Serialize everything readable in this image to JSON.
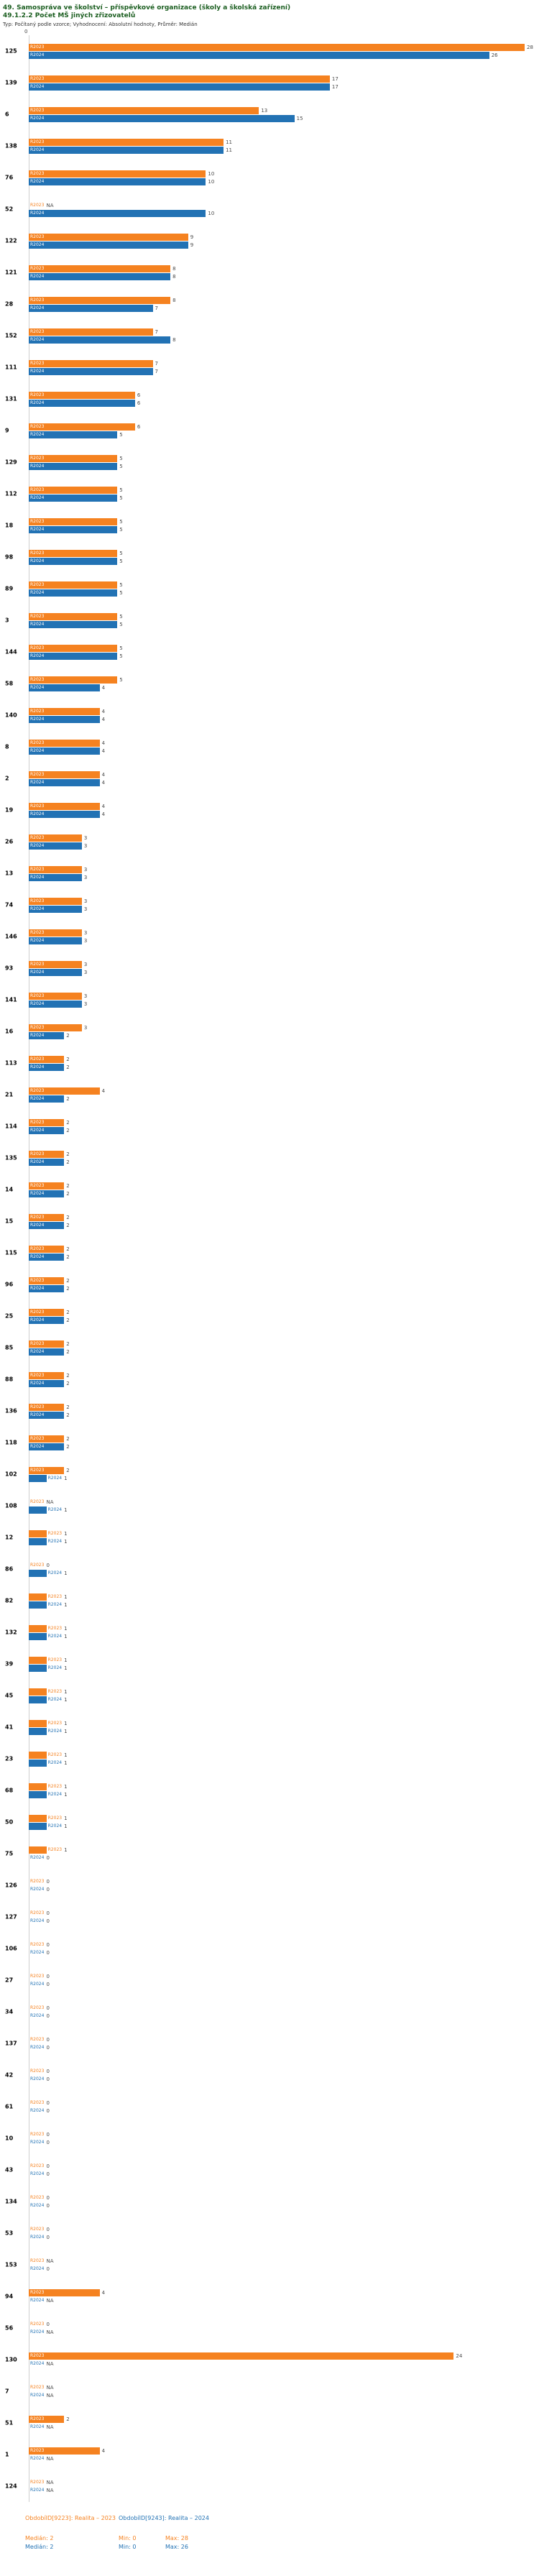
{
  "header": {
    "title_line1": "49. Samospráva ve školství – příspěvkové organizace (školy a školská zařízení)",
    "title_line2": "49.1.2.2 Počet MŠ jiných zřizovatelů",
    "subtitle": "Typ: Počítaný podle vzorce; Vyhodnocení: Absolutní hodnoty, Průměr: Medián"
  },
  "chart_data": {
    "type": "bar",
    "orientation": "horizontal",
    "xlim": [
      0,
      28
    ],
    "axis_zero_label": "0",
    "na_label": "NA",
    "grid": false,
    "legend_position": "bottom",
    "series": [
      {
        "name": "R2023",
        "period_label": "ObdobíID[9223]: Realita – 2023",
        "color": "#f58220",
        "median": 2,
        "min": 0,
        "max": 28,
        "median_text": "Medián: 2",
        "min_text": "Min: 0",
        "max_text": "Max: 28"
      },
      {
        "name": "R2024",
        "period_label": "ObdobíID[9243]: Realita – 2024",
        "color": "#2272b4",
        "median": 2,
        "min": 0,
        "max": 26,
        "median_text": "Medián: 2",
        "min_text": "Min: 0",
        "max_text": "Max: 26"
      }
    ],
    "rows": [
      {
        "id": "125",
        "r2023": 28,
        "r2024": 26
      },
      {
        "id": "139",
        "r2023": 17,
        "r2024": 17
      },
      {
        "id": "6",
        "r2023": 13,
        "r2024": 15
      },
      {
        "id": "138",
        "r2023": 11,
        "r2024": 11
      },
      {
        "id": "76",
        "r2023": 10,
        "r2024": 10
      },
      {
        "id": "52",
        "r2023": null,
        "r2024": 10
      },
      {
        "id": "122",
        "r2023": 9,
        "r2024": 9
      },
      {
        "id": "121",
        "r2023": 8,
        "r2024": 8
      },
      {
        "id": "28",
        "r2023": 8,
        "r2024": 7
      },
      {
        "id": "152",
        "r2023": 7,
        "r2024": 8
      },
      {
        "id": "111",
        "r2023": 7,
        "r2024": 7
      },
      {
        "id": "131",
        "r2023": 6,
        "r2024": 6
      },
      {
        "id": "9",
        "r2023": 6,
        "r2024": 5
      },
      {
        "id": "129",
        "r2023": 5,
        "r2024": 5
      },
      {
        "id": "112",
        "r2023": 5,
        "r2024": 5
      },
      {
        "id": "18",
        "r2023": 5,
        "r2024": 5
      },
      {
        "id": "98",
        "r2023": 5,
        "r2024": 5
      },
      {
        "id": "89",
        "r2023": 5,
        "r2024": 5
      },
      {
        "id": "3",
        "r2023": 5,
        "r2024": 5
      },
      {
        "id": "144",
        "r2023": 5,
        "r2024": 5
      },
      {
        "id": "58",
        "r2023": 5,
        "r2024": 4
      },
      {
        "id": "140",
        "r2023": 4,
        "r2024": 4
      },
      {
        "id": "8",
        "r2023": 4,
        "r2024": 4
      },
      {
        "id": "2",
        "r2023": 4,
        "r2024": 4
      },
      {
        "id": "19",
        "r2023": 4,
        "r2024": 4
      },
      {
        "id": "26",
        "r2023": 3,
        "r2024": 3
      },
      {
        "id": "13",
        "r2023": 3,
        "r2024": 3
      },
      {
        "id": "74",
        "r2023": 3,
        "r2024": 3
      },
      {
        "id": "146",
        "r2023": 3,
        "r2024": 3
      },
      {
        "id": "93",
        "r2023": 3,
        "r2024": 3
      },
      {
        "id": "141",
        "r2023": 3,
        "r2024": 3
      },
      {
        "id": "16",
        "r2023": 3,
        "r2024": 2
      },
      {
        "id": "113",
        "r2023": 2,
        "r2024": 2
      },
      {
        "id": "21",
        "r2023": 4,
        "r2024": 2
      },
      {
        "id": "114",
        "r2023": 2,
        "r2024": 2
      },
      {
        "id": "135",
        "r2023": 2,
        "r2024": 2
      },
      {
        "id": "14",
        "r2023": 2,
        "r2024": 2
      },
      {
        "id": "15",
        "r2023": 2,
        "r2024": 2
      },
      {
        "id": "115",
        "r2023": 2,
        "r2024": 2
      },
      {
        "id": "96",
        "r2023": 2,
        "r2024": 2
      },
      {
        "id": "25",
        "r2023": 2,
        "r2024": 2
      },
      {
        "id": "85",
        "r2023": 2,
        "r2024": 2
      },
      {
        "id": "88",
        "r2023": 2,
        "r2024": 2
      },
      {
        "id": "136",
        "r2023": 2,
        "r2024": 2
      },
      {
        "id": "118",
        "r2023": 2,
        "r2024": 2
      },
      {
        "id": "102",
        "r2023": 2,
        "r2024": 1
      },
      {
        "id": "108",
        "r2023": null,
        "r2024": 1
      },
      {
        "id": "12",
        "r2023": 1,
        "r2024": 1
      },
      {
        "id": "86",
        "r2023": 0,
        "r2024": 1
      },
      {
        "id": "82",
        "r2023": 1,
        "r2024": 1
      },
      {
        "id": "132",
        "r2023": 1,
        "r2024": 1
      },
      {
        "id": "39",
        "r2023": 1,
        "r2024": 1
      },
      {
        "id": "45",
        "r2023": 1,
        "r2024": 1
      },
      {
        "id": "41",
        "r2023": 1,
        "r2024": 1
      },
      {
        "id": "23",
        "r2023": 1,
        "r2024": 1
      },
      {
        "id": "68",
        "r2023": 1,
        "r2024": 1
      },
      {
        "id": "50",
        "r2023": 1,
        "r2024": 1
      },
      {
        "id": "75",
        "r2023": 1,
        "r2024": 0
      },
      {
        "id": "126",
        "r2023": 0,
        "r2024": 0
      },
      {
        "id": "127",
        "r2023": 0,
        "r2024": 0
      },
      {
        "id": "106",
        "r2023": 0,
        "r2024": 0
      },
      {
        "id": "27",
        "r2023": 0,
        "r2024": 0
      },
      {
        "id": "34",
        "r2023": 0,
        "r2024": 0
      },
      {
        "id": "137",
        "r2023": 0,
        "r2024": 0
      },
      {
        "id": "42",
        "r2023": 0,
        "r2024": 0
      },
      {
        "id": "61",
        "r2023": 0,
        "r2024": 0
      },
      {
        "id": "10",
        "r2023": 0,
        "r2024": 0
      },
      {
        "id": "43",
        "r2023": 0,
        "r2024": 0
      },
      {
        "id": "134",
        "r2023": 0,
        "r2024": 0
      },
      {
        "id": "53",
        "r2023": 0,
        "r2024": 0
      },
      {
        "id": "153",
        "r2023": null,
        "r2024": 0
      },
      {
        "id": "94",
        "r2023": 4,
        "r2024": null
      },
      {
        "id": "56",
        "r2023": 0,
        "r2024": null
      },
      {
        "id": "130",
        "r2023": 24,
        "r2024": null
      },
      {
        "id": "7",
        "r2023": null,
        "r2024": null
      },
      {
        "id": "51",
        "r2023": 2,
        "r2024": null
      },
      {
        "id": "1",
        "r2023": 4,
        "r2024": null
      },
      {
        "id": "124",
        "r2023": null,
        "r2024": null
      }
    ]
  }
}
